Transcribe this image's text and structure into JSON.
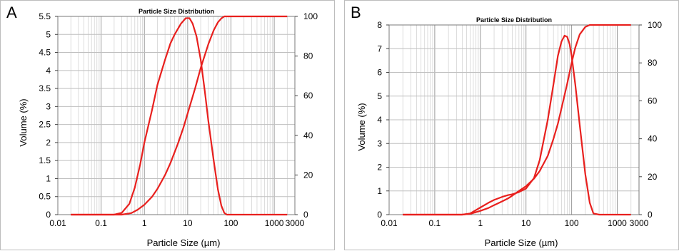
{
  "chart_data": [
    {
      "panel": "A",
      "type": "line",
      "title": "Particle Size Distribution",
      "xlabel": "Particle Size (µm)",
      "ylabel": "Volume (%)",
      "x_scale": "log",
      "xlim": [
        0.01,
        3000
      ],
      "ylim": [
        0,
        5.5
      ],
      "y2lim": [
        0,
        100
      ],
      "x_ticks": [
        0.01,
        0.1,
        1,
        10,
        100,
        1000,
        3000
      ],
      "x_tick_labels": [
        "0.01",
        "0.1",
        "1",
        "10",
        "100",
        "1000",
        "3000"
      ],
      "y_ticks": [
        0,
        0.5,
        1,
        1.5,
        2,
        2.5,
        3,
        3.5,
        4,
        4.5,
        5,
        5.5
      ],
      "y_tick_labels": [
        "0",
        "0.5",
        "1",
        "1.5",
        "2",
        "2.5",
        "3",
        "3.5",
        "4",
        "4.5",
        "5",
        "5.5"
      ],
      "y2_ticks": [
        0,
        20,
        40,
        60,
        80,
        100
      ],
      "y2_tick_labels": [
        "0",
        "20",
        "40",
        "60",
        "80",
        "100"
      ],
      "grid": true,
      "color": "#e8201e",
      "series": [
        {
          "axis": "left",
          "x": [
            0.02,
            0.2,
            0.3,
            0.45,
            0.6,
            0.8,
            1,
            1.5,
            2,
            3,
            4,
            5,
            7,
            9,
            11,
            13,
            16,
            20,
            25,
            30,
            40,
            50,
            60,
            70,
            80,
            100,
            300,
            2000
          ],
          "y": [
            0,
            0,
            0.05,
            0.3,
            0.75,
            1.4,
            2.0,
            2.9,
            3.6,
            4.3,
            4.75,
            5.0,
            5.3,
            5.45,
            5.45,
            5.3,
            4.95,
            4.3,
            3.4,
            2.6,
            1.5,
            0.7,
            0.25,
            0.05,
            0,
            0,
            0,
            0
          ]
        },
        {
          "axis": "right",
          "x": [
            0.02,
            0.2,
            0.3,
            0.5,
            0.7,
            1,
            1.5,
            2,
            3,
            4,
            6,
            8,
            10,
            15,
            20,
            30,
            40,
            50,
            60,
            70,
            80,
            100,
            300,
            2000
          ],
          "y": [
            0,
            0,
            0,
            0.8,
            2.5,
            5,
            9,
            13,
            20,
            26,
            36,
            44,
            51,
            64,
            74,
            86,
            93,
            97,
            99,
            100,
            100,
            100,
            100,
            100
          ]
        }
      ]
    },
    {
      "panel": "B",
      "type": "line",
      "title": "Particle Size Distribution",
      "xlabel": "Particle Size (µm)",
      "ylabel": "Volume (%)",
      "x_scale": "log",
      "xlim": [
        0.01,
        3000
      ],
      "ylim": [
        0,
        8
      ],
      "y2lim": [
        0,
        100
      ],
      "x_ticks": [
        0.01,
        0.1,
        1,
        10,
        100,
        1000,
        3000
      ],
      "x_tick_labels": [
        "0.01",
        "0.1",
        "1",
        "10",
        "100",
        "1000",
        "3000"
      ],
      "y_ticks": [
        0,
        1,
        2,
        3,
        4,
        5,
        6,
        7,
        8
      ],
      "y_tick_labels": [
        "0",
        "1",
        "2",
        "3",
        "4",
        "5",
        "6",
        "7",
        "8"
      ],
      "y2_ticks": [
        0,
        20,
        40,
        60,
        80,
        100
      ],
      "y2_tick_labels": [
        "0",
        "20",
        "40",
        "60",
        "80",
        "100"
      ],
      "grid": true,
      "color": "#e8201e",
      "series": [
        {
          "axis": "left",
          "x": [
            0.02,
            0.4,
            0.6,
            1,
            1.5,
            2,
            3,
            4,
            5,
            7,
            10,
            15,
            20,
            30,
            40,
            50,
            60,
            70,
            80,
            90,
            100,
            120,
            150,
            200,
            250,
            300,
            400,
            2000
          ],
          "y": [
            0,
            0,
            0.05,
            0.3,
            0.5,
            0.62,
            0.75,
            0.82,
            0.86,
            0.95,
            1.1,
            1.55,
            2.3,
            4.0,
            5.5,
            6.7,
            7.3,
            7.55,
            7.5,
            7.2,
            6.7,
            5.5,
            3.8,
            1.7,
            0.5,
            0.05,
            0,
            0
          ]
        },
        {
          "axis": "right",
          "x": [
            0.02,
            0.4,
            0.6,
            1,
            1.5,
            2,
            3,
            4,
            5,
            7,
            10,
            15,
            20,
            30,
            40,
            50,
            60,
            70,
            80,
            100,
            120,
            150,
            200,
            250,
            300,
            400,
            2000
          ],
          "y": [
            0,
            0,
            0.4,
            2,
            3.5,
            5,
            7,
            8.5,
            10,
            12.5,
            15,
            19,
            23,
            31,
            40,
            48,
            56,
            63,
            69,
            80,
            88,
            95,
            99,
            100,
            100,
            100,
            100
          ]
        }
      ]
    }
  ]
}
